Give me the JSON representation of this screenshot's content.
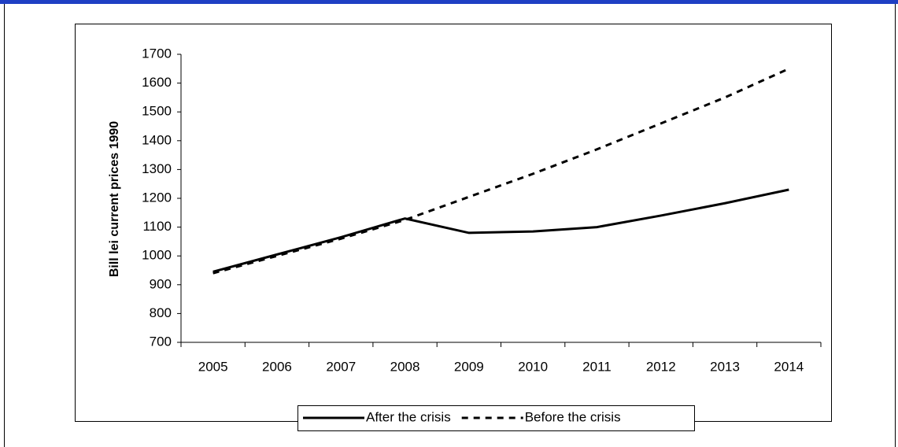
{
  "chart_data": {
    "type": "line",
    "y_label": "Bill lei current prices 1990",
    "categories": [
      "2005",
      "2006",
      "2007",
      "2008",
      "2009",
      "2010",
      "2011",
      "2012",
      "2013",
      "2014"
    ],
    "series": [
      {
        "name": "After the crisis",
        "color": "#000000",
        "style": "solid",
        "values": [
          945,
          1005,
          1065,
          1130,
          1080,
          1085,
          1100,
          1140,
          1183,
          1230
        ]
      },
      {
        "name": "Before the crisis",
        "color": "#000000",
        "style": "dashed",
        "values": [
          940,
          1000,
          1060,
          1125,
          1205,
          1285,
          1370,
          1460,
          1550,
          1650
        ]
      }
    ],
    "ylim": [
      700,
      1700
    ],
    "yticks": [
      700,
      800,
      900,
      1000,
      1100,
      1200,
      1300,
      1400,
      1500,
      1600,
      1700
    ],
    "grid": false,
    "legend": "bottom"
  }
}
